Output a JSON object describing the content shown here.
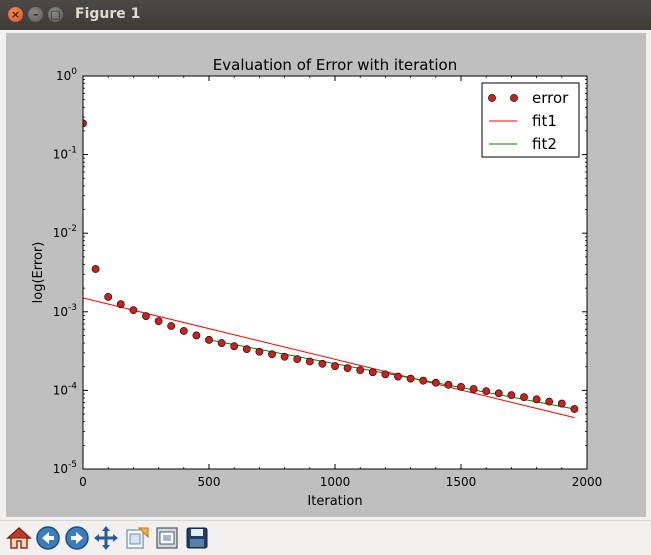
{
  "window": {
    "title": "Figure 1",
    "close_glyph": "×",
    "min_glyph": "–",
    "max_glyph": "□"
  },
  "toolbar": {
    "buttons": [
      {
        "name": "home-icon"
      },
      {
        "name": "back-icon"
      },
      {
        "name": "forward-icon"
      },
      {
        "name": "pan-icon"
      },
      {
        "name": "zoom-icon"
      },
      {
        "name": "subplots-icon"
      },
      {
        "name": "save-icon"
      }
    ]
  },
  "chart_data": {
    "type": "scatter",
    "title": "Evaluation of Error with iteration",
    "xlabel": "Iteration",
    "ylabel": "log(Error)",
    "xlim": [
      0,
      2000
    ],
    "ylim": [
      1e-05,
      1
    ],
    "yscale": "log",
    "xticks": [
      "0",
      "500",
      "1000",
      "1500",
      "2000"
    ],
    "yticks": [
      {
        "base": "10",
        "exp": "0"
      },
      {
        "base": "10",
        "exp": "-1"
      },
      {
        "base": "10",
        "exp": "-2"
      },
      {
        "base": "10",
        "exp": "-3"
      },
      {
        "base": "10",
        "exp": "-4"
      },
      {
        "base": "10",
        "exp": "-5"
      }
    ],
    "grid": false,
    "legend_position": "top-right",
    "colors": {
      "error": "#cc2020",
      "fit1": "#ff0000",
      "fit2": "#008000"
    },
    "series": [
      {
        "name": "error",
        "kind": "markers",
        "x": [
          0,
          50,
          100,
          150,
          200,
          250,
          300,
          350,
          400,
          450,
          500,
          550,
          600,
          650,
          700,
          750,
          800,
          850,
          900,
          950,
          1000,
          1050,
          1100,
          1150,
          1200,
          1250,
          1300,
          1350,
          1400,
          1450,
          1500,
          1550,
          1600,
          1650,
          1700,
          1750,
          1800,
          1850,
          1900,
          1950
        ],
        "y": [
          0.25,
          0.0035,
          0.00155,
          0.00125,
          0.00105,
          0.00088,
          0.00076,
          0.00066,
          0.00057,
          0.0005,
          0.00044,
          0.0004,
          0.000365,
          0.000335,
          0.00031,
          0.000288,
          0.000268,
          0.00025,
          0.000233,
          0.000218,
          0.000204,
          0.000192,
          0.000181,
          0.00017,
          0.00016,
          0.00015,
          0.000141,
          0.000133,
          0.000125,
          0.000118,
          0.000111,
          0.000104,
          9.8e-05,
          9.2e-05,
          8.7e-05,
          8.2e-05,
          7.7e-05,
          7.2e-05,
          6.8e-05,
          5.8e-05
        ]
      },
      {
        "name": "fit1",
        "kind": "line",
        "x": [
          0,
          1950
        ],
        "y": [
          0.0015,
          4.5e-05
        ]
      },
      {
        "name": "fit2",
        "kind": "line",
        "x": [
          500,
          1950
        ],
        "y": [
          0.00044,
          5.8e-05
        ]
      }
    ]
  }
}
